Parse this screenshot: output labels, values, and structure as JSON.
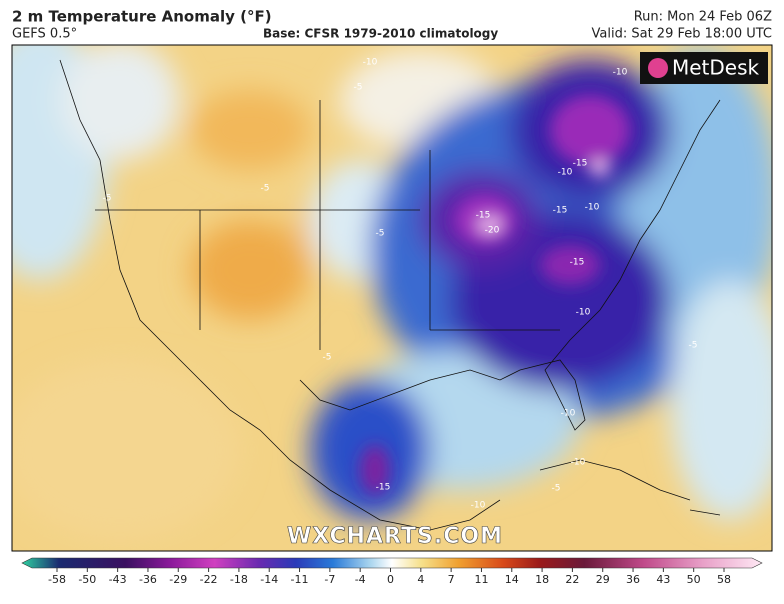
{
  "header": {
    "title": "2 m Temperature Anomaly (°F)",
    "model": "GEFS 0.5°",
    "base": "Base: CFSR 1979-2010 climatology",
    "run": "Run: Mon 24 Feb 06Z",
    "valid": "Valid: Sat 29 Feb 18:00 UTC"
  },
  "logo": "MetDesk",
  "watermark": "WXCHARTS.COM",
  "contour_labels": [
    "-10",
    "-5",
    "-10",
    "-15",
    "-10",
    "-15",
    "-10",
    "-15",
    "-20",
    "-15",
    "-10",
    "-5",
    "-5",
    "-5",
    "-5",
    "-10",
    "-10",
    "-5",
    "-15",
    "-10",
    "-5"
  ],
  "colorbar": {
    "ticks": [
      -58,
      -50,
      -43,
      -36,
      -29,
      -22,
      -18,
      -14,
      -11,
      -7,
      -4,
      0,
      4,
      7,
      11,
      14,
      18,
      22,
      29,
      36,
      43,
      50,
      58
    ]
  }
}
